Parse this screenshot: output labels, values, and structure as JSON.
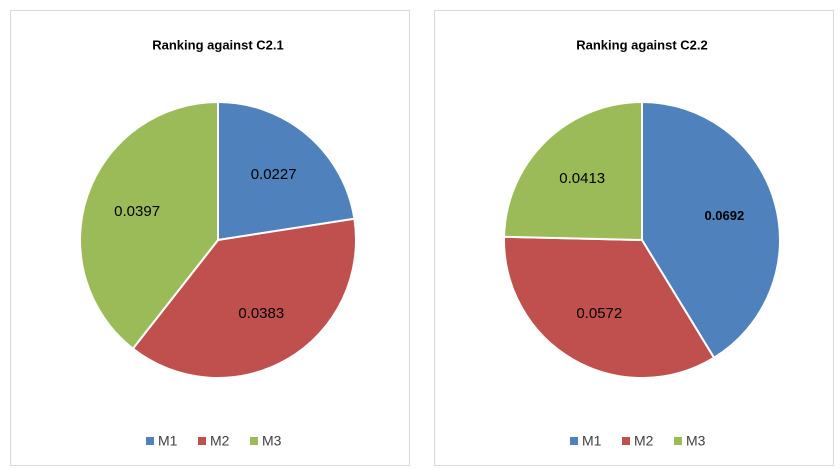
{
  "chart_data": [
    {
      "type": "pie",
      "title": "Ranking against C2.1",
      "categories": [
        "M1",
        "M2",
        "M3"
      ],
      "values": [
        0.0227,
        0.0383,
        0.0397
      ],
      "colors": [
        "#4f81bd",
        "#c0504d",
        "#9bbb59"
      ],
      "legend": "bottom"
    },
    {
      "type": "pie",
      "title": "Ranking against C2.2",
      "categories": [
        "M1",
        "M2",
        "M3"
      ],
      "values": [
        0.0692,
        0.0572,
        0.0413
      ],
      "colors": [
        "#4f81bd",
        "#c0504d",
        "#9bbb59"
      ],
      "legend": "bottom"
    }
  ]
}
